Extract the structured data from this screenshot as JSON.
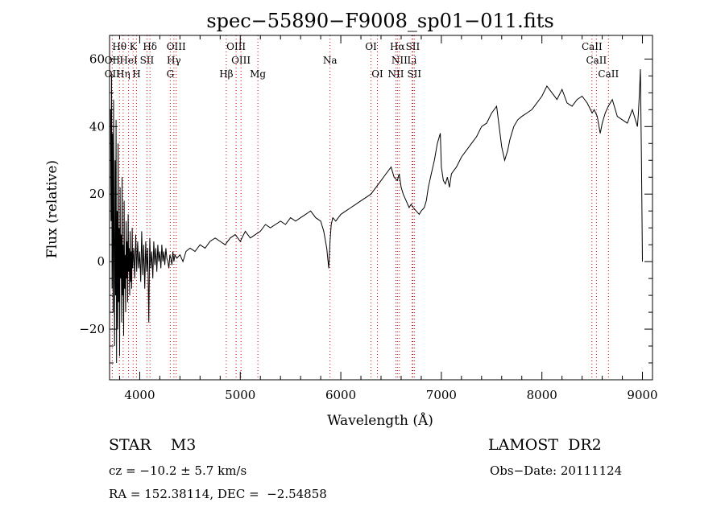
{
  "chart_data": {
    "type": "line",
    "title": "spec−55890−F9008_sp01−011.fits",
    "xlabel": "Wavelength (Å)",
    "ylabel": "Flux (relative)",
    "xlim": [
      3700,
      9100
    ],
    "ylim": [
      -35,
      67
    ],
    "xticks": [
      4000,
      5000,
      6000,
      7000,
      8000,
      9000
    ],
    "yticks": [
      -20,
      0,
      20,
      40,
      60
    ],
    "ytick_labels": [
      "−20",
      "0",
      "20",
      "40",
      "60"
    ],
    "grid": false,
    "series": [
      {
        "x": [
          3710,
          3715,
          3720,
          3725,
          3730,
          3735,
          3740,
          3745,
          3750,
          3755,
          3760,
          3765,
          3770,
          3775,
          3780,
          3785,
          3790,
          3795,
          3800,
          3805,
          3810,
          3815,
          3820,
          3825,
          3830,
          3835,
          3840,
          3845,
          3850,
          3855,
          3860,
          3865,
          3870,
          3875,
          3880,
          3885,
          3890,
          3895,
          3900,
          3905,
          3910,
          3915,
          3920,
          3925,
          3930,
          3940,
          3950,
          3960,
          3970,
          3980,
          3990,
          4000,
          4010,
          4020,
          4030,
          4040,
          4050,
          4060,
          4070,
          4080,
          4090,
          4100,
          4110,
          4120,
          4130,
          4140,
          4150,
          4160,
          4170,
          4180,
          4190,
          4200,
          4210,
          4220,
          4230,
          4240,
          4250,
          4260,
          4270,
          4280,
          4290,
          4300,
          4310,
          4320,
          4330,
          4340,
          4350,
          4370,
          4400,
          4430,
          4460,
          4500,
          4550,
          4600,
          4650,
          4700,
          4750,
          4800,
          4850,
          4900,
          4950,
          5000,
          5050,
          5100,
          5150,
          5200,
          5250,
          5300,
          5350,
          5400,
          5450,
          5500,
          5550,
          5600,
          5650,
          5700,
          5750,
          5800,
          5830,
          5860,
          5880,
          5893,
          5905,
          5920,
          5950,
          6000,
          6050,
          6100,
          6150,
          6200,
          6250,
          6300,
          6350,
          6400,
          6450,
          6500,
          6530,
          6563,
          6580,
          6600,
          6620,
          6650,
          6680,
          6700,
          6720,
          6750,
          6780,
          6800,
          6830,
          6850,
          6870,
          6900,
          6930,
          6960,
          6990,
          7000,
          7020,
          7040,
          7060,
          7080,
          7100,
          7150,
          7200,
          7250,
          7300,
          7350,
          7400,
          7450,
          7500,
          7550,
          7600,
          7630,
          7660,
          7680,
          7700,
          7720,
          7760,
          7800,
          7850,
          7900,
          7950,
          8000,
          8050,
          8100,
          8150,
          8200,
          8250,
          8300,
          8350,
          8400,
          8450,
          8500,
          8520,
          8550,
          8580,
          8600,
          8630,
          8660,
          8700,
          8750,
          8800,
          8850,
          8900,
          8930,
          8950,
          8960,
          8970,
          8980,
          8990,
          9000
        ],
        "y": [
          45,
          12,
          55,
          -8,
          38,
          -15,
          48,
          5,
          -25,
          30,
          -10,
          42,
          -30,
          15,
          -20,
          35,
          -12,
          10,
          -28,
          22,
          -5,
          8,
          -18,
          25,
          -10,
          5,
          -22,
          18,
          -8,
          2,
          -15,
          12,
          -5,
          6,
          -12,
          14,
          -3,
          4,
          -10,
          9,
          -6,
          3,
          -8,
          10,
          -2,
          4,
          -5,
          8,
          -3,
          6,
          -2,
          3,
          -6,
          9,
          -4,
          5,
          -8,
          6,
          -3,
          4,
          -18,
          7,
          -2,
          3,
          -5,
          6,
          -1,
          4,
          -3,
          5,
          0,
          3,
          -2,
          5,
          0,
          3,
          -1,
          4,
          1,
          0,
          -2,
          2,
          1,
          -1,
          3,
          0,
          2,
          1,
          2,
          0,
          3,
          4,
          3,
          5,
          4,
          6,
          7,
          6,
          5,
          7,
          8,
          6,
          9,
          7,
          8,
          9,
          11,
          10,
          11,
          12,
          11,
          13,
          12,
          13,
          14,
          15,
          13,
          12,
          9,
          4,
          -2,
          6,
          11,
          13,
          12,
          14,
          15,
          16,
          17,
          18,
          19,
          20,
          22,
          24,
          26,
          28,
          25,
          24,
          26,
          22,
          20,
          18,
          16,
          17,
          16,
          15,
          14,
          15,
          16,
          18,
          22,
          26,
          30,
          35,
          38,
          28,
          24,
          23,
          25,
          22,
          26,
          28,
          31,
          33,
          35,
          37,
          40,
          41,
          44,
          46,
          34,
          30,
          33,
          36,
          38,
          40,
          42,
          43,
          44,
          45,
          47,
          49,
          52,
          50,
          48,
          51,
          47,
          46,
          48,
          49,
          47,
          44,
          45,
          43,
          38,
          41,
          44,
          46,
          48,
          43,
          42,
          41,
          45,
          42,
          40,
          44,
          50,
          57,
          30,
          0
        ]
      }
    ]
  },
  "annotations": {
    "row1": [
      {
        "label": "Hθ",
        "wl": 3798
      },
      {
        "label": "K",
        "wl": 3934
      },
      {
        "label": "Hδ",
        "wl": 4102
      },
      {
        "label": "OIII",
        "wl": 4363
      },
      {
        "label": "OIII",
        "wl": 4959
      },
      {
        "label": "OI",
        "wl": 6300
      },
      {
        "label": "Hα",
        "wl": 6563
      },
      {
        "label": "SII",
        "wl": 6716
      },
      {
        "label": "CaII",
        "wl": 8498
      }
    ],
    "row2": [
      {
        "label": "OII",
        "wl": 3727
      },
      {
        "label": "HeI",
        "wl": 3889
      },
      {
        "label": "SII",
        "wl": 4072
      },
      {
        "label": "Hγ",
        "wl": 4340
      },
      {
        "label": "OIII",
        "wl": 5007
      },
      {
        "label": "Na",
        "wl": 5893
      },
      {
        "label": "NII",
        "wl": 6583
      },
      {
        "label": "Li",
        "wl": 6708
      },
      {
        "label": "CaII",
        "wl": 8542
      }
    ],
    "row3": [
      {
        "label": "OII",
        "wl": 3727
      },
      {
        "label": "Hη",
        "wl": 3835
      },
      {
        "label": "H",
        "wl": 3968
      },
      {
        "label": "G",
        "wl": 4304
      },
      {
        "label": "Hβ",
        "wl": 4861
      },
      {
        "label": "Mg",
        "wl": 5175
      },
      {
        "label": "OI",
        "wl": 6364
      },
      {
        "label": "NII",
        "wl": 6548
      },
      {
        "label": "SII",
        "wl": 6731
      },
      {
        "label": "CaII",
        "wl": 8662
      }
    ]
  },
  "info": {
    "object": "STAR    M3",
    "survey": "LAMOST  DR2",
    "cz": "cz = −10.2 ± 5.7 km/s",
    "obs_date": "Obs−Date: 20111124",
    "coords": "RA = 152.38114, DEC =  −2.54858"
  },
  "colors": {
    "line": "#000000",
    "marker_lines": "#cc0000",
    "axes": "#000000"
  }
}
